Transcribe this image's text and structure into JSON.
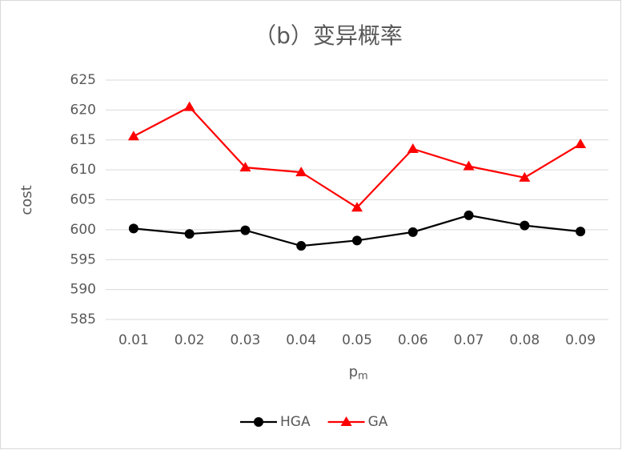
{
  "chart_data": {
    "type": "line",
    "title": "（b）变异概率",
    "y_label": "cost",
    "x_label": "p",
    "x_label_sub": "m",
    "categories": [
      "0.01",
      "0.02",
      "0.03",
      "0.04",
      "0.05",
      "0.06",
      "0.07",
      "0.08",
      "0.09"
    ],
    "series": [
      {
        "name": "HGA",
        "color": "#000000",
        "marker": "circle",
        "values": [
          600.2,
          599.3,
          599.9,
          597.3,
          598.2,
          599.6,
          602.4,
          600.7,
          599.7
        ]
      },
      {
        "name": "GA",
        "color": "#ff0000",
        "marker": "triangle",
        "values": [
          615.6,
          620.5,
          610.4,
          609.6,
          603.7,
          613.5,
          610.6,
          608.7,
          614.3
        ]
      }
    ],
    "ylim": [
      585,
      625
    ],
    "yticks": [
      585,
      590,
      595,
      600,
      605,
      610,
      615,
      620,
      625
    ],
    "grid": true,
    "legend": "bottom"
  }
}
